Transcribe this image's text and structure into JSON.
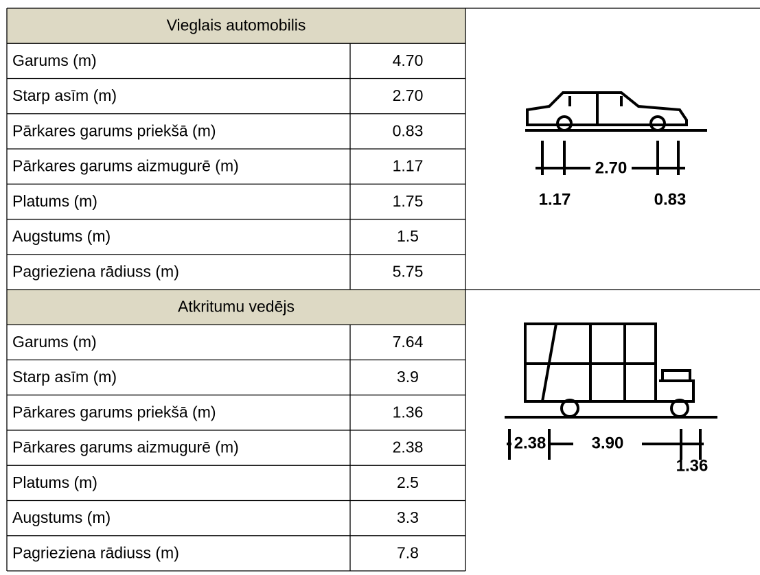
{
  "sections": [
    {
      "title": "Vieglais automobilis",
      "rows": [
        [
          "Garums (m)",
          "4.70"
        ],
        [
          "Starp asīm (m)",
          "2.70"
        ],
        [
          "Pārkares garums priekšā (m)",
          "0.83"
        ],
        [
          "Pārkares garums aizmugurē (m)",
          "1.17"
        ],
        [
          "Platums (m)",
          "1.75"
        ],
        [
          "Augstums (m)",
          "1.5"
        ],
        [
          "Pagrieziena rādiuss (m)",
          "5.75"
        ]
      ],
      "drawing": {
        "wheelbase": "2.70",
        "rear_overhang": "1.17",
        "front_overhang": "0.83"
      }
    },
    {
      "title": "Atkritumu vedējs",
      "rows": [
        [
          "Garums (m)",
          "7.64"
        ],
        [
          "Starp asīm (m)",
          "3.9"
        ],
        [
          "Pārkares garums priekšā (m)",
          "1.36"
        ],
        [
          "Pārkares garums aizmugurē (m)",
          "2.38"
        ],
        [
          "Platums (m)",
          "2.5"
        ],
        [
          "Augstums (m)",
          "3.3"
        ],
        [
          "Pagrieziena rādiuss (m)",
          "7.8"
        ]
      ],
      "drawing": {
        "wheelbase": "3.90",
        "rear_overhang": "2.38",
        "front_overhang": "1.36"
      }
    }
  ]
}
